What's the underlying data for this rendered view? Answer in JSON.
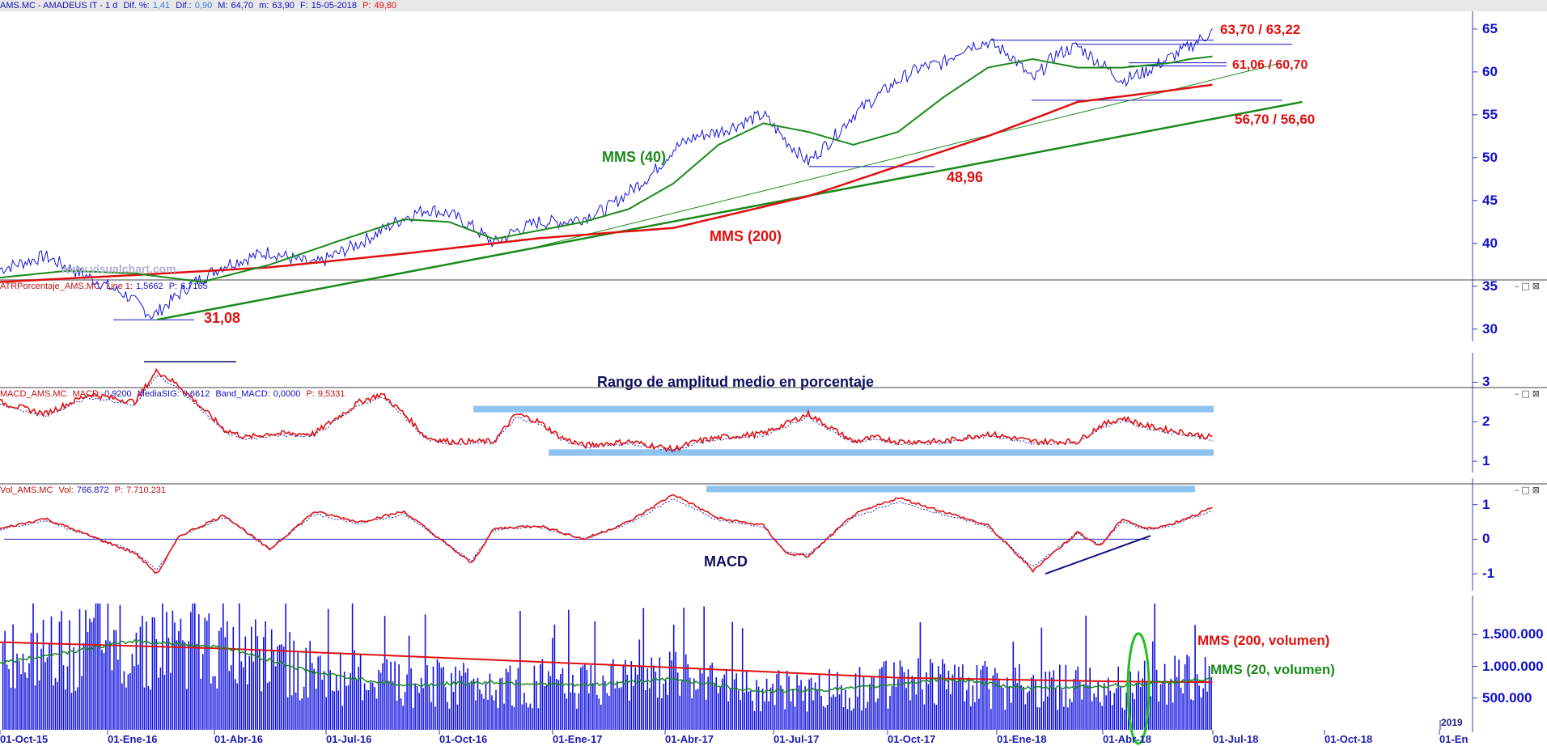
{
  "colors": {
    "price": "#1515d8",
    "mms40": "#1a8a1a",
    "mms200": "#e01010",
    "trend": "#1a8a1a",
    "atr": "#e01010",
    "signal": "#2020c0",
    "band": "#8ec3f0",
    "volume": "#1010e0",
    "annot_red": "#e01818",
    "annot_green": "#1a8a1a",
    "annot_navy": "#101060"
  },
  "price_pane": {
    "header": {
      "symbol": "AMS.MC - AMADEUS IT - 1 d",
      "dif_pct_label": "Dif. %:",
      "dif_pct_value": "1,41",
      "dif_label": "Dif.:",
      "dif_value": "0,90",
      "max_label": "M:",
      "max_value": "64,70",
      "min_label": "m:",
      "min_value": "63,90",
      "date_label": "F:",
      "date_value": "15-05-2018",
      "p_label": "P:",
      "p_value": "49,80"
    },
    "watermark": "www.visualchart.com",
    "annotations": {
      "mms40": "MMS (40)",
      "mms200": "MMS (200)",
      "low": "31,08",
      "support1": "48,96",
      "res1": "63,70 / 63,22",
      "res2": "61,06 / 60,70",
      "res3": "56,70 / 56,60"
    }
  },
  "atr_pane": {
    "header": {
      "name": "ATRPorcentaje_AMS.MC",
      "line_label": "Line 1:",
      "line_value": "1,5662",
      "p_label": "P:",
      "p_value": "6,7165"
    },
    "title": "Rango de amplitud medio en porcentaje"
  },
  "macd_pane": {
    "header": {
      "name": "MACD_AMS.MC",
      "macd_label": "MACD:",
      "macd_value": "0,9200",
      "sig_label": "MediaSIG:",
      "sig_value": "0,6612",
      "band_label": "Band_MACD:",
      "band_value": "0,0000",
      "p_label": "P:",
      "p_value": "9,5331"
    },
    "title": "MACD"
  },
  "vol_pane": {
    "header": {
      "name": "Vol_AMS.MC",
      "vol_label": "Vol:",
      "vol_value": "766.872",
      "p_label": "P:",
      "p_value": "7.710.231"
    },
    "annotations": {
      "mms200": "MMS (200, volumen)",
      "mms20": "MMS (20, volumen)"
    },
    "year_marker": "2019"
  },
  "chart_data": [
    {
      "type": "line",
      "title": "AMS.MC - AMADEUS IT - 1 d",
      "x_ticks": [
        "01-Oct-15",
        "01-Ene-16",
        "01-Abr-16",
        "01-Jul-16",
        "01-Oct-16",
        "01-Ene-17",
        "01-Abr-17",
        "01-Jul-17",
        "01-Oct-17",
        "01-Ene-18",
        "01-Abr-18",
        "01-Jul-18",
        "01-Oct-18",
        "01-En"
      ],
      "y_ticks": [
        30,
        35,
        40,
        45,
        50,
        55,
        60,
        65
      ],
      "ylim": [
        29.5,
        66.5
      ],
      "series": [
        {
          "name": "MMS (40)",
          "x": [
            0,
            0.15,
            0.3,
            0.45,
            0.6,
            0.75,
            0.9,
            1.0,
            1.1,
            1.2,
            1.3,
            1.4,
            1.5,
            1.6,
            1.7,
            1.8,
            1.9,
            2.0,
            2.1,
            2.2,
            2.3,
            2.4,
            2.5,
            2.6,
            2.65,
            2.7
          ],
          "values": [
            36,
            36.8,
            36.5,
            35.5,
            37.5,
            40.2,
            42.8,
            42.5,
            40.5,
            41.5,
            42.5,
            44,
            47,
            51.5,
            54,
            53,
            51.5,
            53,
            57,
            60.5,
            61.5,
            60.5,
            60.5,
            61,
            61.5,
            61.8
          ]
        },
        {
          "name": "MMS (200)",
          "x": [
            0,
            0.3,
            0.6,
            0.9,
            1.2,
            1.5,
            1.8,
            2.0,
            2.2,
            2.4,
            2.6,
            2.7
          ],
          "values": [
            35.5,
            36.3,
            37.2,
            38.8,
            40.6,
            41.8,
            45.5,
            49,
            52.5,
            56.5,
            57.8,
            58.5
          ]
        },
        {
          "name": "",
          "x": [
            0,
            0.1,
            0.2,
            0.28,
            0.34,
            0.42,
            0.5,
            0.6,
            0.7,
            0.8,
            0.9,
            0.95,
            1.0,
            1.05,
            1.1,
            1.15,
            1.2,
            1.25,
            1.3,
            1.35,
            1.4,
            1.45,
            1.5,
            1.55,
            1.6,
            1.65,
            1.7,
            1.75,
            1.8,
            1.85,
            1.9,
            1.95,
            2.0,
            2.05,
            2.1,
            2.15,
            2.2,
            2.25,
            2.3,
            2.35,
            2.4,
            2.45,
            2.5,
            2.55,
            2.6,
            2.65,
            2.7
          ],
          "values": [
            37,
            38.5,
            36,
            34,
            31.5,
            35,
            37.5,
            39,
            37.5,
            40,
            43,
            44,
            43.5,
            42,
            40,
            41.5,
            42.5,
            42.5,
            43,
            44,
            46,
            48,
            51,
            52.5,
            53,
            54,
            55,
            52,
            49.5,
            52,
            55,
            57,
            59,
            60.5,
            61,
            63,
            63.5,
            62,
            59,
            62,
            63,
            61,
            59,
            60,
            61.5,
            63,
            64.7
          ]
        }
      ],
      "trendlines": [
        {
          "from": [
            0.35,
            31.1
          ],
          "to": [
            2.9,
            56.5
          ]
        },
        {
          "from": [
            1.15,
            39
          ],
          "to": [
            2.85,
            61
          ]
        }
      ],
      "levels": [
        63.7,
        63.22,
        61.06,
        60.7,
        56.7,
        56.6,
        48.96,
        31.08
      ]
    },
    {
      "type": "line",
      "title": "ATRPorcentaje_AMS.MC",
      "y_ticks": [
        1,
        2,
        3
      ],
      "ylim": [
        0.9,
        3.5
      ],
      "series": [
        {
          "name": "Line 1",
          "x": [
            0,
            0.1,
            0.2,
            0.3,
            0.35,
            0.4,
            0.5,
            0.55,
            0.6,
            0.7,
            0.8,
            0.85,
            0.9,
            0.95,
            1.0,
            1.1,
            1.15,
            1.2,
            1.25,
            1.3,
            1.4,
            1.5,
            1.55,
            1.6,
            1.7,
            1.8,
            1.9,
            1.95,
            2.0,
            2.1,
            2.2,
            2.3,
            2.4,
            2.45,
            2.5,
            2.55,
            2.6,
            2.65,
            2.7
          ],
          "values": [
            2.5,
            2.2,
            2.7,
            2.5,
            3.3,
            2.9,
            1.8,
            1.6,
            1.7,
            1.7,
            2.5,
            2.7,
            2.2,
            1.6,
            1.5,
            1.5,
            2.2,
            2.0,
            1.6,
            1.4,
            1.5,
            1.3,
            1.5,
            1.6,
            1.7,
            2.2,
            1.5,
            1.6,
            1.5,
            1.5,
            1.7,
            1.5,
            1.5,
            1.9,
            2.1,
            1.9,
            1.8,
            1.7,
            1.6
          ]
        }
      ],
      "bands": [
        2.3,
        1.2
      ]
    },
    {
      "type": "line",
      "title": "MACD_AMS.MC",
      "y_ticks": [
        -1,
        0,
        1
      ],
      "ylim": [
        -1.3,
        1.6
      ],
      "series": [
        {
          "name": "MACD",
          "x": [
            0,
            0.1,
            0.2,
            0.3,
            0.35,
            0.4,
            0.5,
            0.6,
            0.7,
            0.8,
            0.9,
            1.0,
            1.05,
            1.1,
            1.2,
            1.3,
            1.4,
            1.5,
            1.6,
            1.7,
            1.75,
            1.8,
            1.9,
            2.0,
            2.1,
            2.2,
            2.3,
            2.4,
            2.45,
            2.5,
            2.55,
            2.6,
            2.7
          ],
          "values": [
            0.3,
            0.6,
            0.1,
            -0.4,
            -1.0,
            0.1,
            0.7,
            -0.3,
            0.8,
            0.5,
            0.8,
            -0.2,
            -0.7,
            0.3,
            0.4,
            0.0,
            0.5,
            1.3,
            0.6,
            0.4,
            -0.4,
            -0.5,
            0.7,
            1.2,
            0.8,
            0.4,
            -0.9,
            0.2,
            -0.2,
            0.6,
            0.3,
            0.4,
            0.9
          ]
        }
      ],
      "bands": [
        1.45,
        0
      ],
      "trendlines": [
        {
          "from": [
            2.38,
            -1.0
          ],
          "to": [
            2.7,
            0.1
          ]
        }
      ]
    },
    {
      "type": "bar",
      "title": "Vol_AMS.MC",
      "y_ticks": [
        "500.000",
        "1.000.000",
        "1.500.000"
      ],
      "ylim": [
        0,
        2000000
      ],
      "series": [
        {
          "name": "MMS (200, volumen)",
          "x": [
            0,
            0.5,
            1.0,
            1.5,
            2.0,
            2.5,
            2.7
          ],
          "values": [
            1380000,
            1280000,
            1130000,
            980000,
            820000,
            760000,
            750000
          ]
        },
        {
          "name": "MMS (20, volumen)",
          "x": [
            0,
            0.3,
            0.5,
            0.7,
            0.9,
            1.1,
            1.3,
            1.5,
            1.7,
            1.9,
            2.1,
            2.3,
            2.5,
            2.7
          ],
          "values": [
            1050000,
            1400000,
            1300000,
            900000,
            700000,
            750000,
            700000,
            800000,
            600000,
            650000,
            800000,
            650000,
            700000,
            800000
          ]
        }
      ]
    }
  ]
}
